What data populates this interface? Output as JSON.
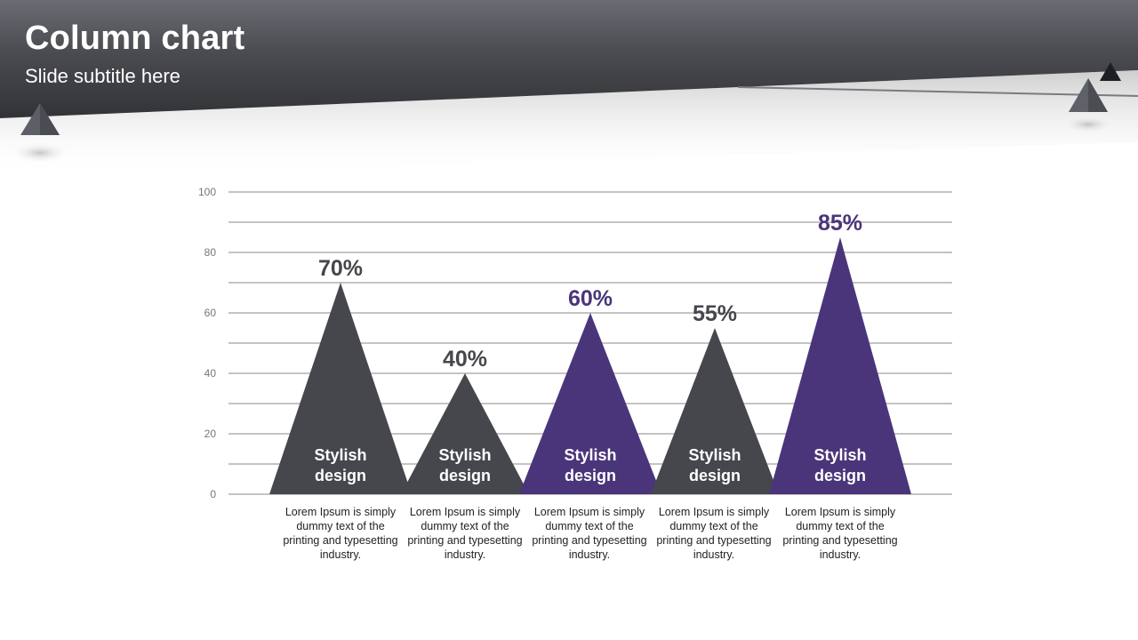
{
  "slide": {
    "title": "Column chart",
    "subtitle": "Slide subtitle here"
  },
  "colors": {
    "dark": "#45474c",
    "purple": "#4a357a",
    "header": "#3f4044",
    "tick_text": "#777777",
    "gridline": "#8a8a8a"
  },
  "chart_data": {
    "type": "bar",
    "ylim": [
      0,
      100
    ],
    "y_ticks": [
      "0",
      "20",
      "40",
      "60",
      "80",
      "100"
    ],
    "grid": true,
    "legend": "none",
    "categories": [
      "Stylish design",
      "Stylish design",
      "Stylish design",
      "Stylish design",
      "Stylish design"
    ],
    "values": [
      70,
      40,
      60,
      55,
      85
    ],
    "value_labels": [
      "70%",
      "40%",
      "60%",
      "55%",
      "85%"
    ],
    "inner_label_lines": [
      [
        "Stylish",
        "design"
      ],
      [
        "Stylish",
        "design"
      ],
      [
        "Stylish",
        "design"
      ],
      [
        "Stylish",
        "design"
      ],
      [
        "Stylish",
        "design"
      ]
    ],
    "bar_colors": [
      "#45474c",
      "#45474c",
      "#4a357a",
      "#45474c",
      "#4a357a"
    ],
    "descriptions": [
      "Lorem Ipsum is simply dummy text of the printing and typesetting industry.",
      "Lorem Ipsum is simply dummy text of the printing and typesetting industry.",
      "Lorem Ipsum is simply dummy text of the printing and typesetting industry.",
      "Lorem Ipsum is simply dummy text of the printing and typesetting industry.",
      "Lorem Ipsum is simply dummy text of the printing and typesetting industry."
    ]
  }
}
